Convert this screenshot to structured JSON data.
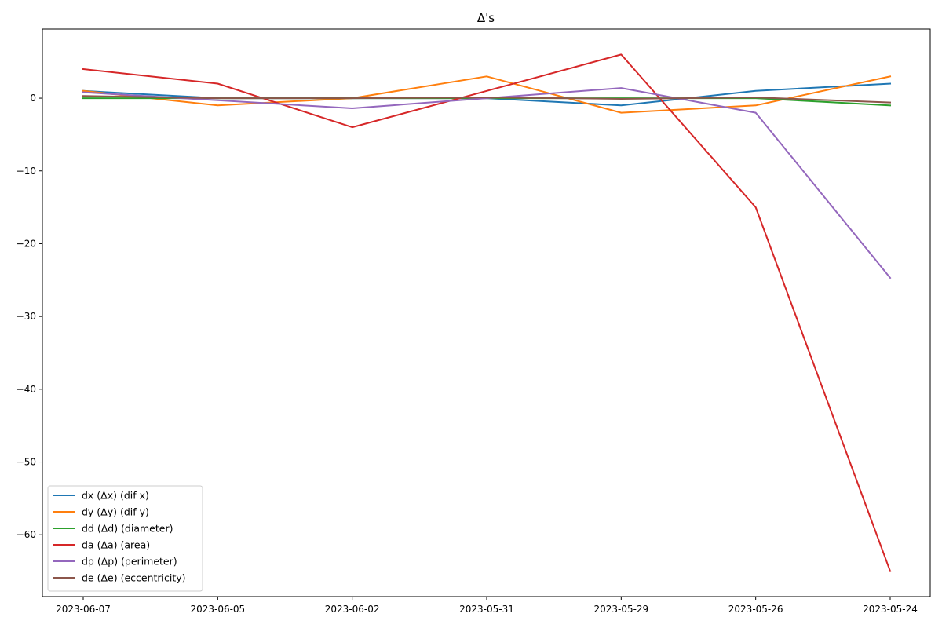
{
  "chart_data": {
    "type": "line",
    "title": "Δ's",
    "xlabel": "",
    "ylabel": "",
    "x": [
      "2023-06-07",
      "2023-06-05",
      "2023-06-02",
      "2023-05-31",
      "2023-05-29",
      "2023-05-26",
      "2023-05-24"
    ],
    "ylim": [
      -68.5,
      9.5
    ],
    "yticks": [
      0,
      -10,
      -20,
      -30,
      -40,
      -50,
      -60
    ],
    "ytick_labels": [
      "0",
      "−10",
      "−20",
      "−30",
      "−40",
      "−50",
      "−60"
    ],
    "grid": false,
    "legend_position": "lower-left",
    "series": [
      {
        "name": "dx (Δx) (dif x)",
        "color": "#1f77b4",
        "values": [
          1,
          0,
          0,
          0,
          -1,
          1,
          2
        ]
      },
      {
        "name": "dy (Δy) (dif y)",
        "color": "#ff7f0e",
        "values": [
          1,
          -1,
          0,
          3,
          -2,
          -1,
          3
        ]
      },
      {
        "name": "dd (Δd) (diameter)",
        "color": "#2ca02c",
        "values": [
          0,
          0,
          0,
          0,
          0,
          0,
          -1
        ]
      },
      {
        "name": "da (Δa) (area)",
        "color": "#d62728",
        "values": [
          4,
          2,
          -4,
          1,
          6,
          -15,
          -65
        ]
      },
      {
        "name": "dp (Δp) (perimeter)",
        "color": "#9467bd",
        "values": [
          0.8,
          -0.3,
          -1.4,
          0,
          1.4,
          -2,
          -24.7
        ]
      },
      {
        "name": "de (Δe) (eccentricity)",
        "color": "#8c564b",
        "values": [
          0.3,
          0,
          0,
          0.1,
          -0.1,
          0.1,
          -0.6
        ]
      }
    ]
  }
}
